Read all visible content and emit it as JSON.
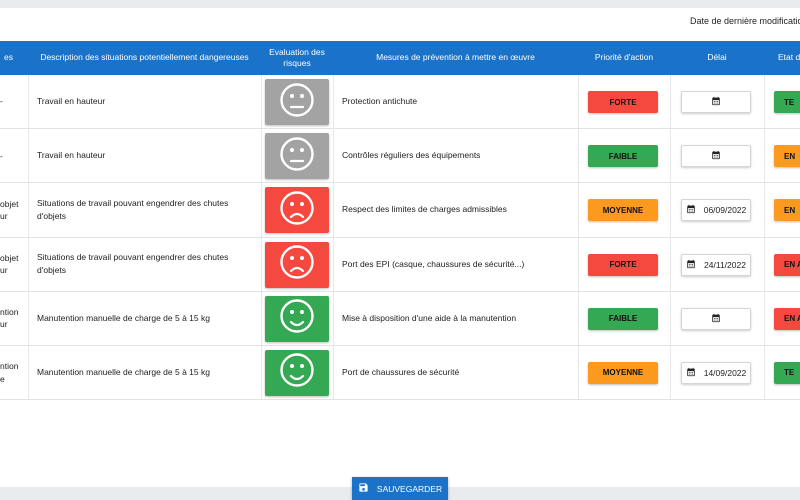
{
  "header": {
    "last_modified_label": "Date de dernière modificatio"
  },
  "columns": {
    "c1": "es",
    "c2": "Description des situations potentiellement dangereuses",
    "c3": "Evaluation des risques",
    "c4": "Mesures de prévention à mettre en œuvre",
    "c5": "Priorité d'action",
    "c6": "Délai",
    "c7": "Etat d'a"
  },
  "colors": {
    "header_bg": "#1a73c8",
    "grey": "#a3a3a3",
    "red": "#f5483f",
    "green": "#34a853",
    "orange": "#fb9a1e"
  },
  "rows": [
    {
      "c1_l1": "-",
      "c1_l2": "",
      "description": "Travail en hauteur",
      "risk": "neutral",
      "measure": "Protection antichute",
      "priority": "FORTE",
      "priority_color": "red",
      "date": "",
      "etat": "TE",
      "etat_color": "green"
    },
    {
      "c1_l1": "-",
      "c1_l2": "",
      "description": "Travail en hauteur",
      "risk": "neutral",
      "measure": "Contrôles réguliers des équipements",
      "priority": "FAIBLE",
      "priority_color": "green",
      "date": "",
      "etat": "EN",
      "etat_color": "orange"
    },
    {
      "c1_l1": "objet",
      "c1_l2": "ur",
      "description": "Situations de travail pouvant engendrer des chutes d'objets",
      "risk": "sad",
      "measure": "Respect des limites de charges admissibles",
      "priority": "MOYENNE",
      "priority_color": "orange",
      "date": "06/09/2022",
      "etat": "EN",
      "etat_color": "orange"
    },
    {
      "c1_l1": "objet",
      "c1_l2": "ur",
      "description": "Situations de travail pouvant engendrer des chutes d'objets",
      "risk": "sad",
      "measure": "Port des EPI (casque, chaussures de sécurité...)",
      "priority": "FORTE",
      "priority_color": "red",
      "date": "24/11/2022",
      "etat": "EN A",
      "etat_color": "red"
    },
    {
      "c1_l1": "ntion",
      "c1_l2": "ur",
      "description": "Manutention manuelle de charge de 5 à 15 kg",
      "risk": "happy",
      "measure": "Mise à disposition d'une aide à la manutention",
      "priority": "FAIBLE",
      "priority_color": "green",
      "date": "",
      "etat": "EN A",
      "etat_color": "red"
    },
    {
      "c1_l1": "ntion",
      "c1_l2": "e",
      "description": "Manutention manuelle de charge de 5 à 15 kg",
      "risk": "happy",
      "measure": "Port de chaussures de sécurité",
      "priority": "MOYENNE",
      "priority_color": "orange",
      "date": "14/09/2022",
      "etat": "TE",
      "etat_color": "green"
    }
  ],
  "footer": {
    "save_label": "SAUVEGARDER",
    "save_icon": "floppy-disk-icon",
    "calendar_icon": "calendar-icon"
  }
}
